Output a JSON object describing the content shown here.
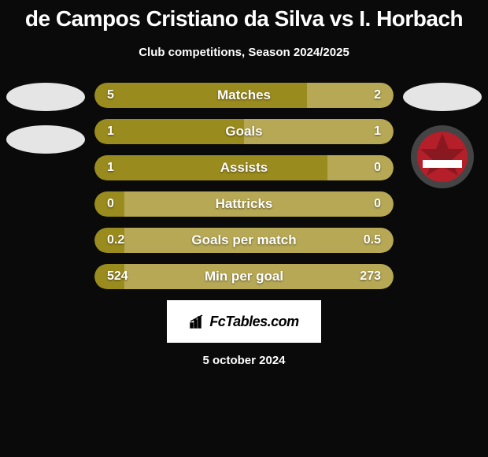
{
  "header": {
    "title": "de Campos Cristiano da Silva vs I. Horbach",
    "subtitle": "Club competitions, Season 2024/2025"
  },
  "left_badges": {
    "ellipse1_color": "#e5e5e5",
    "ellipse2_color": "#e5e5e5"
  },
  "right_badges": {
    "ellipse_color": "#e5e5e5",
    "club_badge": {
      "outer_color": "#444444",
      "inner_color": "#b51f2a",
      "stripe_color": "#ffffff"
    }
  },
  "bars": {
    "left_color": "#9a8b1e",
    "right_color": "#b6a854",
    "text_color": "#ffffff",
    "rows": [
      {
        "label": "Matches",
        "left_val": "5",
        "right_val": "2",
        "left_pct": 71
      },
      {
        "label": "Goals",
        "left_val": "1",
        "right_val": "1",
        "left_pct": 50
      },
      {
        "label": "Assists",
        "left_val": "1",
        "right_val": "0",
        "left_pct": 78
      },
      {
        "label": "Hattricks",
        "left_val": "0",
        "right_val": "0",
        "left_pct": 10
      },
      {
        "label": "Goals per match",
        "left_val": "0.2",
        "right_val": "0.5",
        "left_pct": 10
      },
      {
        "label": "Min per goal",
        "left_val": "524",
        "right_val": "273",
        "left_pct": 10
      }
    ]
  },
  "footer": {
    "brand": "FcTables.com",
    "date": "5 october 2024"
  }
}
